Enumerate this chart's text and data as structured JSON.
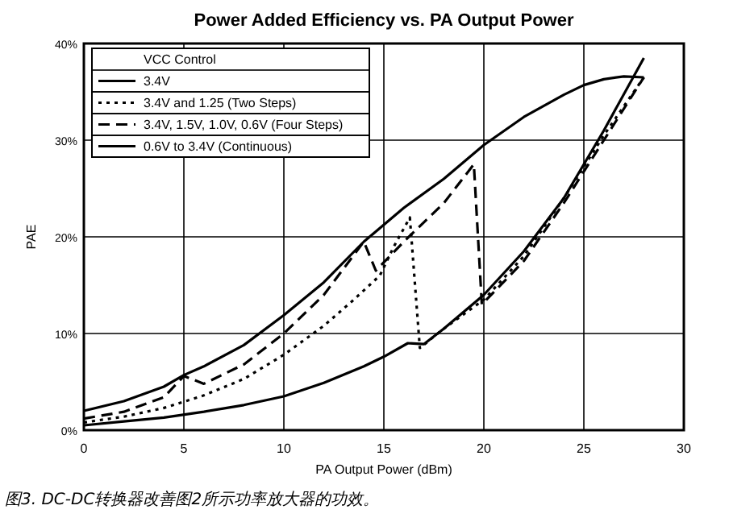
{
  "chart_data": {
    "type": "line",
    "title": "Power Added Efficiency vs. PA Output Power",
    "xlabel": "PA Output Power (dBm)",
    "ylabel": "PAE",
    "legend_title": "VCC Control",
    "annotations": [
      "图3. DC-DC转换器改善图2所示功率放大器的功效。"
    ],
    "xlim": [
      0,
      30
    ],
    "xticks": [
      0,
      5,
      10,
      15,
      20,
      25,
      30
    ],
    "ylim": [
      0,
      40
    ],
    "yticks": [
      {
        "value": 0,
        "label": "0%"
      },
      {
        "value": 10,
        "label": "10%"
      },
      {
        "value": 20,
        "label": "20%"
      },
      {
        "value": 30,
        "label": "30%"
      },
      {
        "value": 40,
        "label": "40%"
      }
    ],
    "grid": true,
    "legend": "top left",
    "marker": "none",
    "series": [
      {
        "name": "3.4V",
        "color": "#000000",
        "line_style": "solid",
        "x": [
          0,
          2,
          4,
          6,
          8,
          10,
          12,
          14,
          15,
          16.2,
          17,
          18,
          20,
          22,
          24,
          26,
          28
        ],
        "values": [
          0.5,
          0.9,
          1.3,
          1.9,
          2.6,
          3.5,
          4.9,
          6.6,
          7.6,
          9,
          8.9,
          10.5,
          14,
          18.5,
          24,
          31,
          38.5
        ]
      },
      {
        "name": "3.4V and 1.25 (Two Steps)",
        "color": "#000000",
        "line_style": "dotted",
        "x": [
          0,
          2,
          4,
          6,
          8,
          10,
          12,
          13.5,
          14.8,
          15.5,
          16.3,
          16.8,
          18,
          20,
          22,
          24,
          26,
          28
        ],
        "values": [
          0.8,
          1.4,
          2.3,
          3.6,
          5.3,
          7.8,
          10.8,
          13.5,
          16,
          19,
          22,
          8.5,
          10.5,
          13.5,
          18,
          24,
          30.5,
          36.5
        ]
      },
      {
        "name": "3.4V, 1.5V, 1.0V, 0.6V (Four Steps)",
        "color": "#000000",
        "line_style": "dashed",
        "x": [
          0,
          2,
          4,
          5,
          6,
          8,
          10,
          12,
          14,
          14.6,
          16,
          18,
          19.5,
          19.9,
          22,
          24,
          26,
          28
        ],
        "values": [
          1.2,
          1.9,
          3.4,
          5.6,
          4.8,
          6.8,
          10,
          14,
          19.5,
          16.5,
          19.5,
          23.5,
          27.5,
          13,
          17.5,
          23.5,
          30,
          36.5
        ]
      },
      {
        "name": "0.6V to 3.4V (Continuous)",
        "color": "#000000",
        "line_style": "solid",
        "x": [
          0,
          2,
          4,
          5,
          6,
          8,
          10,
          12,
          14,
          16,
          18,
          20,
          22,
          24,
          25,
          26,
          27,
          28
        ],
        "values": [
          2,
          3,
          4.5,
          5.7,
          6.6,
          8.8,
          11.9,
          15.3,
          19.5,
          23,
          26,
          29.5,
          32.4,
          34.7,
          35.7,
          36.3,
          36.6,
          36.5
        ]
      }
    ]
  }
}
